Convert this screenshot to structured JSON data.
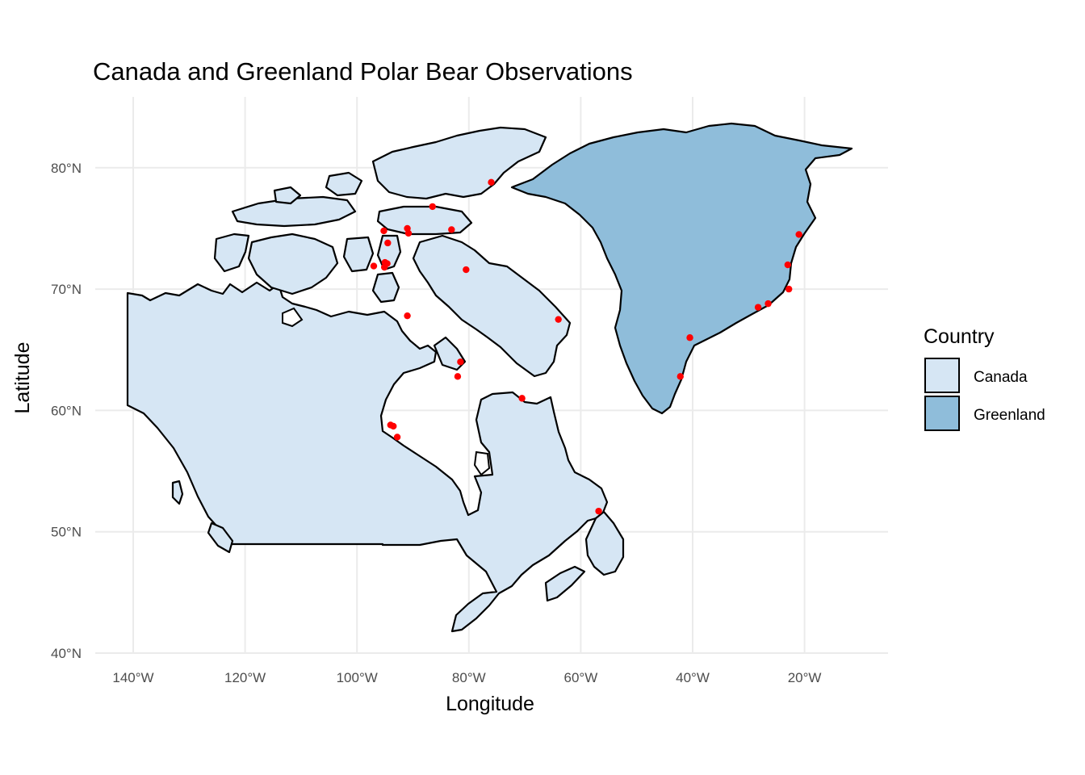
{
  "title": "Canada and Greenland Polar Bear Observations",
  "x_axis": {
    "label": "Longitude",
    "ticks": [
      {
        "value": -140,
        "label": "140°W"
      },
      {
        "value": -120,
        "label": "120°W"
      },
      {
        "value": -100,
        "label": "100°W"
      },
      {
        "value": -80,
        "label": "80°W"
      },
      {
        "value": -60,
        "label": "60°W"
      },
      {
        "value": -40,
        "label": "40°W"
      },
      {
        "value": -20,
        "label": "20°W"
      }
    ]
  },
  "y_axis": {
    "label": "Latitude",
    "ticks": [
      {
        "value": 40,
        "label": "40°N"
      },
      {
        "value": 50,
        "label": "50°N"
      },
      {
        "value": 60,
        "label": "60°N"
      },
      {
        "value": 70,
        "label": "70°N"
      },
      {
        "value": 80,
        "label": "80°N"
      }
    ]
  },
  "legend": {
    "title": "Country",
    "items": [
      {
        "label": "Canada",
        "color": "#d6e6f4"
      },
      {
        "label": "Greenland",
        "color": "#8fbdda"
      }
    ]
  },
  "colors": {
    "canada": "#d6e6f4",
    "greenland": "#8fbdda",
    "observation": "#ff0000",
    "grid": "#ebebeb"
  },
  "chart_data": {
    "type": "scatter",
    "title": "Canada and Greenland Polar Bear Observations",
    "xlabel": "Longitude",
    "ylabel": "Latitude",
    "xlim": [
      -146,
      -11
    ],
    "ylim": [
      40,
      86
    ],
    "grid": true,
    "legend_placement": "right",
    "series": [
      {
        "points": [
          [
            -76,
            78.8
          ],
          [
            -86.5,
            76.8
          ],
          [
            -91,
            75
          ],
          [
            -95.2,
            74.8
          ],
          [
            -90.8,
            74.6
          ],
          [
            -83.1,
            74.9
          ],
          [
            -94.5,
            73.8
          ],
          [
            -97,
            71.9
          ],
          [
            -95,
            72.2
          ],
          [
            -94.6,
            72.1
          ],
          [
            -95.1,
            71.8
          ],
          [
            -80.5,
            71.6
          ],
          [
            -91,
            67.8
          ],
          [
            -64,
            67.5
          ],
          [
            -81.5,
            64
          ],
          [
            -82,
            62.8
          ],
          [
            -70.5,
            61
          ],
          [
            -94,
            58.8
          ],
          [
            -93.5,
            58.7
          ],
          [
            -92.8,
            57.8
          ],
          [
            -56.8,
            51.7
          ],
          [
            -21,
            74.5
          ],
          [
            -23,
            72
          ],
          [
            -22.8,
            70
          ],
          [
            -26.5,
            68.8
          ],
          [
            -28.3,
            68.5
          ],
          [
            -40.5,
            66
          ],
          [
            -42.2,
            62.8
          ]
        ]
      }
    ]
  }
}
